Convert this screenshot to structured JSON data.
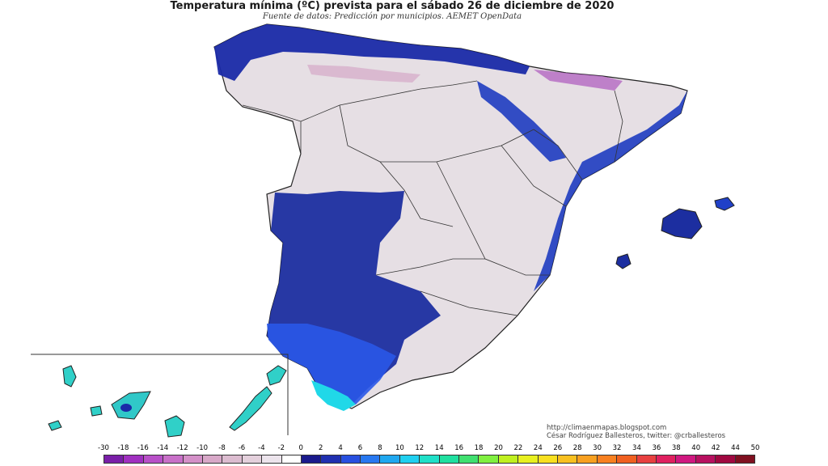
{
  "title": "Temperatura mínima (ºC) prevista para el sábado 26 de diciembre de 2020",
  "subtitle": "Fuente de datos: Predicción por municipios. AEMET OpenData",
  "credits": {
    "line1": "http://climaenmapas.blogspot.com",
    "line2": "César Rodríguez Ballesteros, twitter: @crballesteros"
  },
  "legend": {
    "ticks": [
      "-30",
      "-18",
      "-16",
      "-14",
      "-12",
      "-10",
      "-8",
      "-6",
      "-4",
      "-2",
      "0",
      "2",
      "4",
      "6",
      "8",
      "10",
      "12",
      "14",
      "16",
      "18",
      "20",
      "22",
      "24",
      "26",
      "28",
      "30",
      "32",
      "34",
      "36",
      "38",
      "40",
      "42",
      "44",
      "50"
    ],
    "colors": [
      "#7a1fa8",
      "#a030c0",
      "#b850c8",
      "#c870c8",
      "#d490c8",
      "#d8a8c8",
      "#dcbcd0",
      "#e4d0dc",
      "#ece4ec",
      "#ffffff",
      "#1a1a8c",
      "#2030b0",
      "#2850e0",
      "#2878f0",
      "#20a8f0",
      "#20d0f0",
      "#20e0c8",
      "#20e0a0",
      "#40e070",
      "#80f040",
      "#c0f020",
      "#e8f020",
      "#f8e020",
      "#f8c020",
      "#f8a020",
      "#f88020",
      "#f06020",
      "#e84040",
      "#e02060",
      "#d01880",
      "#b81060",
      "#a00840",
      "#801020"
    ]
  }
}
